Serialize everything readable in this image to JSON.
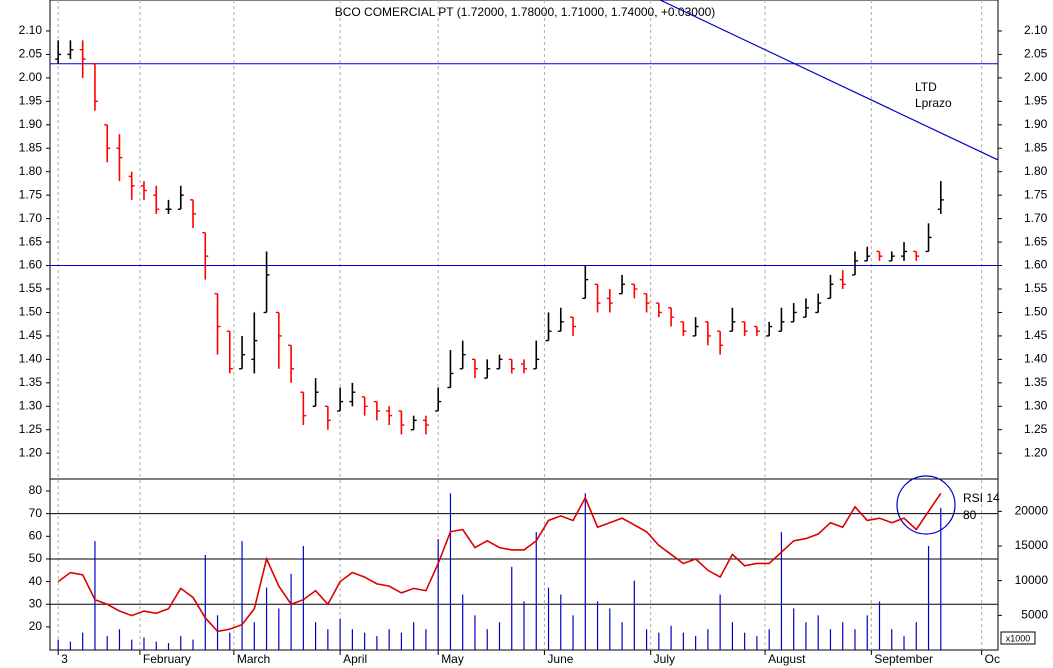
{
  "chart_data": {
    "type": "ohlc",
    "title": "BCO COMERCIAL PT (1.72000, 1.78000, 1.71000, 1.74000, +0.03000)",
    "x": [
      0,
      3,
      6,
      9,
      12,
      15,
      18,
      21,
      24,
      27,
      30,
      33,
      36,
      39,
      42,
      45,
      48,
      51,
      54,
      57,
      60,
      63,
      66,
      69,
      72,
      75,
      78,
      81,
      84,
      87,
      90,
      93,
      96,
      99,
      102,
      105,
      108,
      111,
      114,
      117,
      120,
      123,
      126,
      129,
      132,
      135,
      138,
      141,
      144,
      147,
      150,
      153,
      156,
      159,
      162,
      165,
      168,
      171,
      174,
      177,
      180,
      183,
      186,
      189,
      192,
      195,
      198,
      201,
      204,
      207,
      210,
      213,
      216
    ],
    "xlim": [
      -2,
      230
    ],
    "xticks": [
      {
        "value": 0,
        "label": "3"
      },
      {
        "value": 20,
        "label": "February"
      },
      {
        "value": 43,
        "label": "March"
      },
      {
        "value": 69,
        "label": "April"
      },
      {
        "value": 93,
        "label": "May"
      },
      {
        "value": 119,
        "label": "June"
      },
      {
        "value": 145,
        "label": "July"
      },
      {
        "value": 173,
        "label": "August"
      },
      {
        "value": 199,
        "label": "September"
      },
      {
        "value": 226,
        "label": "Oc"
      }
    ],
    "open": [
      2.04,
      2.05,
      2.06,
      2.03,
      1.9,
      1.85,
      1.79,
      1.77,
      1.75,
      1.72,
      1.72,
      1.74,
      1.67,
      1.54,
      1.46,
      1.38,
      1.4,
      1.5,
      1.5,
      1.43,
      1.33,
      1.3,
      1.3,
      1.29,
      1.31,
      1.32,
      1.31,
      1.29,
      1.29,
      1.25,
      1.27,
      1.29,
      1.34,
      1.38,
      1.4,
      1.36,
      1.38,
      1.4,
      1.39,
      1.38,
      1.44,
      1.46,
      1.49,
      1.53,
      1.56,
      1.53,
      1.54,
      1.56,
      1.54,
      1.52,
      1.51,
      1.48,
      1.45,
      1.48,
      1.46,
      1.46,
      1.48,
      1.47,
      1.45,
      1.46,
      1.48,
      1.49,
      1.5,
      1.53,
      1.57,
      1.58,
      1.61,
      1.63,
      1.61,
      1.62,
      1.63,
      1.63,
      1.72
    ],
    "high": [
      2.08,
      2.08,
      2.08,
      2.03,
      1.9,
      1.88,
      1.8,
      1.78,
      1.77,
      1.74,
      1.77,
      1.74,
      1.67,
      1.54,
      1.46,
      1.45,
      1.5,
      1.63,
      1.5,
      1.43,
      1.33,
      1.36,
      1.3,
      1.34,
      1.35,
      1.32,
      1.31,
      1.3,
      1.29,
      1.28,
      1.28,
      1.34,
      1.42,
      1.44,
      1.4,
      1.4,
      1.41,
      1.4,
      1.4,
      1.44,
      1.5,
      1.51,
      1.49,
      1.6,
      1.56,
      1.55,
      1.58,
      1.56,
      1.54,
      1.52,
      1.51,
      1.48,
      1.49,
      1.48,
      1.46,
      1.51,
      1.48,
      1.47,
      1.48,
      1.51,
      1.52,
      1.53,
      1.54,
      1.58,
      1.59,
      1.63,
      1.64,
      1.63,
      1.63,
      1.65,
      1.63,
      1.69,
      1.78
    ],
    "low": [
      2.03,
      2.04,
      2.0,
      1.93,
      1.82,
      1.78,
      1.74,
      1.74,
      1.71,
      1.71,
      1.72,
      1.68,
      1.57,
      1.41,
      1.37,
      1.38,
      1.37,
      1.5,
      1.38,
      1.35,
      1.26,
      1.3,
      1.25,
      1.29,
      1.3,
      1.28,
      1.27,
      1.26,
      1.24,
      1.25,
      1.24,
      1.29,
      1.34,
      1.38,
      1.36,
      1.36,
      1.38,
      1.37,
      1.37,
      1.38,
      1.44,
      1.46,
      1.45,
      1.53,
      1.5,
      1.5,
      1.54,
      1.53,
      1.5,
      1.49,
      1.47,
      1.45,
      1.45,
      1.43,
      1.41,
      1.46,
      1.45,
      1.45,
      1.45,
      1.46,
      1.48,
      1.49,
      1.5,
      1.53,
      1.55,
      1.58,
      1.61,
      1.61,
      1.61,
      1.61,
      1.61,
      1.63,
      1.71
    ],
    "close": [
      2.05,
      2.06,
      2.04,
      1.95,
      1.85,
      1.83,
      1.77,
      1.76,
      1.72,
      1.72,
      1.75,
      1.71,
      1.62,
      1.47,
      1.38,
      1.41,
      1.44,
      1.58,
      1.45,
      1.38,
      1.28,
      1.33,
      1.27,
      1.31,
      1.33,
      1.3,
      1.29,
      1.28,
      1.26,
      1.27,
      1.26,
      1.31,
      1.37,
      1.41,
      1.38,
      1.38,
      1.4,
      1.38,
      1.38,
      1.4,
      1.46,
      1.48,
      1.47,
      1.57,
      1.52,
      1.52,
      1.56,
      1.55,
      1.52,
      1.5,
      1.49,
      1.46,
      1.47,
      1.45,
      1.43,
      1.48,
      1.46,
      1.46,
      1.47,
      1.48,
      1.5,
      1.51,
      1.52,
      1.56,
      1.56,
      1.61,
      1.62,
      1.62,
      1.62,
      1.63,
      1.62,
      1.66,
      1.74
    ],
    "up_color": "#000000",
    "down_color": "#ff0000",
    "ylim": [
      1.145,
      2.166
    ],
    "yticks": [
      {
        "value": 1.2,
        "label": "1.20"
      },
      1.25,
      {
        "value": 1.3,
        "label": "1.30"
      },
      1.35,
      {
        "value": 1.4,
        "label": "1.40"
      },
      1.45,
      {
        "value": 1.5,
        "label": "1.50"
      },
      1.55,
      {
        "value": 1.6,
        "label": "1.60"
      },
      1.65,
      {
        "value": 1.7,
        "label": "1.70"
      },
      1.75,
      {
        "value": 1.8,
        "label": "1.80"
      },
      1.85,
      {
        "value": 1.9,
        "label": "1.90"
      },
      1.95,
      {
        "value": 2,
        "label": "2.00"
      },
      2.05,
      {
        "value": 2.1,
        "label": "2.10"
      }
    ],
    "hlines": [
      2.03,
      1.6
    ],
    "hline_color": "#0000cc",
    "trendline": {
      "x": [
        147.3,
        230
      ],
      "y": [
        2.166,
        1.825
      ],
      "color": "#0000cc",
      "labels": [
        "LTD",
        "Lprazo"
      ]
    },
    "rsi": {
      "name": "RSI 14",
      "last_label": "80",
      "color": "#dd0000",
      "values": [
        40,
        44,
        43,
        32,
        30,
        27,
        25,
        27,
        26,
        28,
        37,
        33,
        24,
        18,
        19,
        21,
        28,
        50,
        38,
        30,
        32,
        36,
        30,
        40,
        44,
        42,
        39,
        38,
        35,
        37,
        36,
        48,
        62,
        63,
        55,
        58,
        55,
        54,
        54,
        58,
        67,
        69,
        67,
        77,
        64,
        66,
        68,
        65,
        62,
        56,
        52,
        48,
        50,
        45,
        42,
        52,
        47,
        48,
        48,
        53,
        58,
        59,
        61,
        66,
        64,
        73,
        67,
        68,
        66,
        68,
        63,
        71,
        79
      ],
      "ylim": [
        9.8,
        85.3
      ],
      "yticks": [
        20,
        30,
        40,
        50,
        60,
        70,
        80
      ],
      "levels": [
        70,
        50,
        30
      ]
    },
    "volume": {
      "color": "#0000cc",
      "unit_label": "x1000",
      "values": [
        1500,
        1200,
        2500,
        15700,
        2000,
        3000,
        1500,
        1800,
        1200,
        1000,
        2000,
        1500,
        13700,
        5000,
        2500,
        15700,
        4000,
        9000,
        6000,
        11000,
        15000,
        4000,
        3000,
        4500,
        3000,
        2500,
        2000,
        3000,
        2500,
        4000,
        3000,
        16000,
        22600,
        8000,
        5000,
        3000,
        4000,
        12000,
        7000,
        17000,
        9000,
        8000,
        5000,
        22600,
        7000,
        6000,
        4000,
        10000,
        3000,
        2500,
        3500,
        2500,
        2000,
        3000,
        8000,
        4000,
        2500,
        2000,
        3000,
        17000,
        6000,
        4000,
        5000,
        3000,
        4000,
        3000,
        5000,
        7000,
        3000,
        2000,
        4000,
        15000,
        20500
      ],
      "y2lim": [
        0,
        24660
      ],
      "y2ticks": [
        5000,
        10000,
        15000,
        20000
      ]
    },
    "grid": true
  }
}
